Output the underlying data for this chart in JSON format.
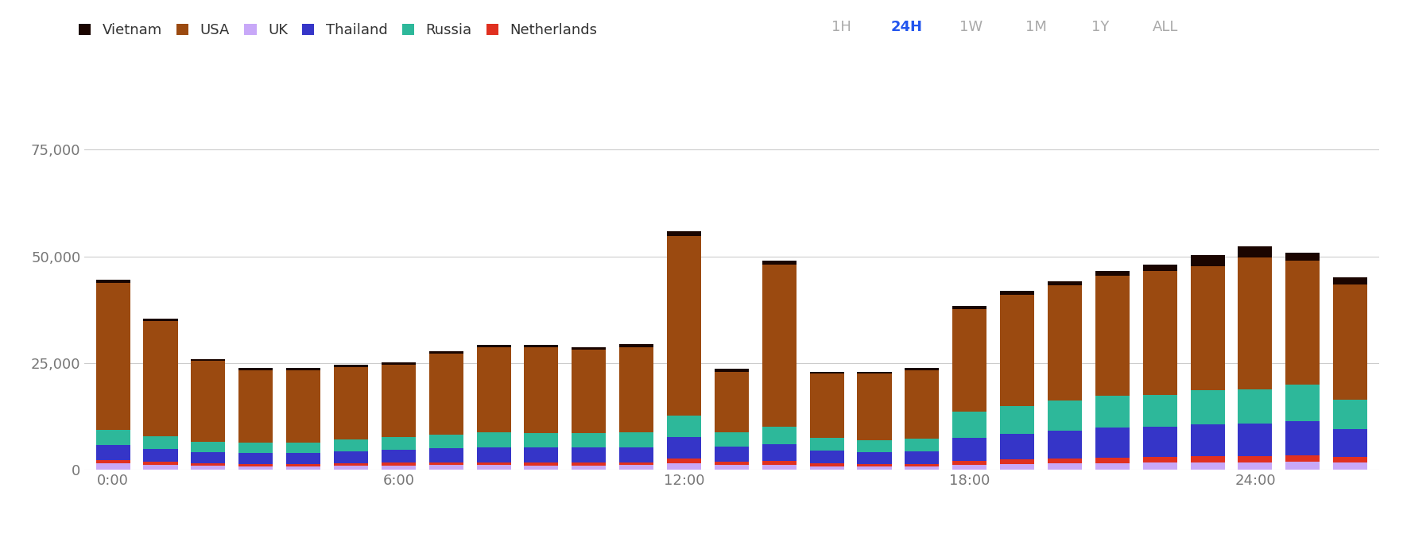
{
  "legend_labels": [
    "Vietnam",
    "USA",
    "UK",
    "Thailand",
    "Russia",
    "Netherlands"
  ],
  "bar_colors": {
    "Vietnam": "#1a0500",
    "USA": "#9b4a10",
    "UK": "#c8a8f8",
    "Thailand": "#3535c8",
    "Russia": "#2db89a",
    "Netherlands": "#e03020"
  },
  "time_buttons": [
    "1H",
    "24H",
    "1W",
    "1M",
    "1Y",
    "ALL"
  ],
  "active_button": "24H",
  "n_bars": 27,
  "data": {
    "UK": [
      1500,
      1200,
      1000,
      900,
      900,
      950,
      1000,
      1100,
      1100,
      1000,
      1000,
      1100,
      1500,
      1100,
      1200,
      900,
      800,
      800,
      1200,
      1400,
      1500,
      1600,
      1700,
      1800,
      1800,
      1900,
      1700
    ],
    "Netherlands": [
      800,
      700,
      600,
      500,
      500,
      600,
      700,
      700,
      700,
      700,
      700,
      700,
      1200,
      800,
      900,
      600,
      600,
      600,
      900,
      1100,
      1200,
      1300,
      1400,
      1400,
      1500,
      1500,
      1300
    ],
    "Thailand": [
      3500,
      3000,
      2500,
      2500,
      2500,
      2800,
      3000,
      3200,
      3500,
      3500,
      3500,
      3500,
      5000,
      3500,
      4000,
      3000,
      2800,
      3000,
      5500,
      6000,
      6500,
      7000,
      7000,
      7500,
      7500,
      8000,
      6500
    ],
    "Russia": [
      3500,
      3000,
      2500,
      2500,
      2500,
      2800,
      3000,
      3200,
      3500,
      3500,
      3500,
      3500,
      5000,
      3500,
      4000,
      3000,
      2800,
      3000,
      6000,
      6500,
      7000,
      7500,
      7500,
      8000,
      8000,
      8500,
      7000
    ],
    "USA": [
      34500,
      27000,
      19000,
      17000,
      17000,
      17000,
      17000,
      19000,
      20000,
      20000,
      19500,
      20000,
      42000,
      14000,
      38000,
      15000,
      15500,
      16000,
      24000,
      26000,
      27000,
      28000,
      29000,
      29000,
      31000,
      29000,
      27000
    ],
    "Vietnam": [
      700,
      500,
      400,
      400,
      400,
      450,
      500,
      500,
      550,
      600,
      550,
      600,
      1200,
      700,
      800,
      500,
      500,
      500,
      700,
      900,
      1000,
      1200,
      1500,
      2500,
      2500,
      2000,
      1500
    ]
  },
  "ylim": [
    0,
    85000
  ],
  "yticks": [
    0,
    25000,
    50000,
    75000
  ],
  "x_tick_labels": [
    "0:00",
    "6:00",
    "12:00",
    "18:00",
    "24:00"
  ],
  "background_color": "#ffffff",
  "grid_color": "#cccccc",
  "bar_width": 0.72
}
